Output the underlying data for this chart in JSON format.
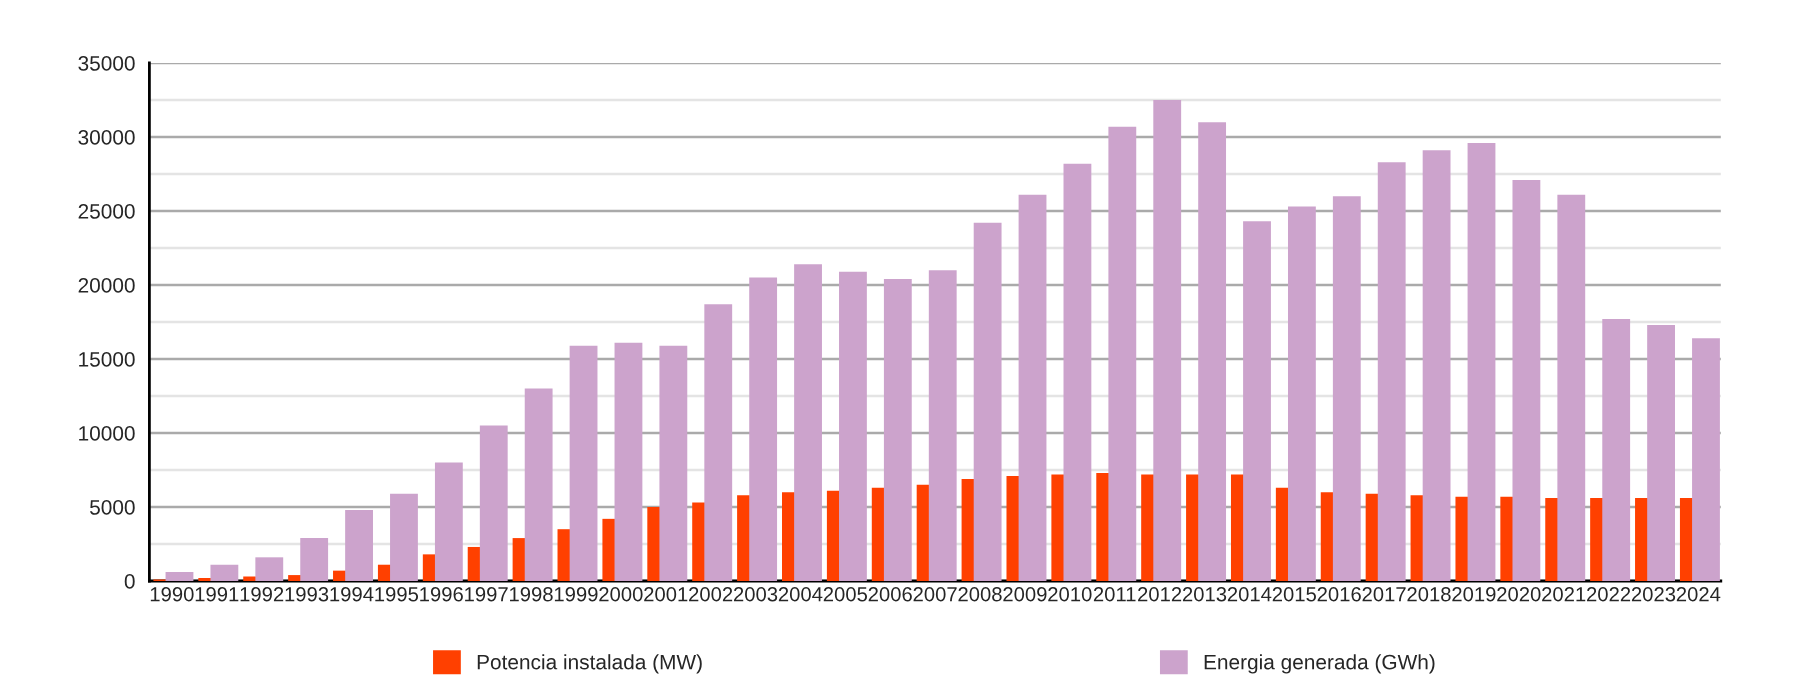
{
  "chart_data": {
    "type": "bar",
    "categories": [
      "1990",
      "1991",
      "1992",
      "1993",
      "1994",
      "1995",
      "1996",
      "1997",
      "1998",
      "1999",
      "2000",
      "2001",
      "2002",
      "2003",
      "2004",
      "2005",
      "2006",
      "2007",
      "2008",
      "2009",
      "2010",
      "2011",
      "2012",
      "2013",
      "2014",
      "2015",
      "2016",
      "2017",
      "2018",
      "2019",
      "2020",
      "2021",
      "2022",
      "2023",
      "2024"
    ],
    "series": [
      {
        "name": "Potencia instalada (MW)",
        "color": "#ff4000",
        "values": [
          100,
          200,
          300,
          400,
          700,
          1100,
          1800,
          2300,
          2900,
          3500,
          4200,
          5000,
          5300,
          5800,
          6000,
          6100,
          6300,
          6500,
          6900,
          7100,
          7200,
          7300,
          7200,
          7200,
          7200,
          6300,
          6000,
          5900,
          5800,
          5700,
          5700,
          5600,
          5600,
          5600,
          5600
        ]
      },
      {
        "name": "Energia generada (GWh)",
        "color": "#cca3cc",
        "values": [
          600,
          1100,
          1600,
          2900,
          4800,
          5900,
          8000,
          10500,
          13000,
          15900,
          16100,
          15900,
          18700,
          20500,
          21400,
          20900,
          20400,
          21000,
          24200,
          26100,
          28200,
          30700,
          32500,
          31000,
          24300,
          25300,
          26000,
          28300,
          29100,
          29600,
          27100,
          26100,
          17700,
          17300,
          16400
        ]
      }
    ],
    "ylim": [
      0,
      35000
    ],
    "yticks": [
      0,
      {
        "value": 2500,
        "label": null
      },
      5000,
      {
        "value": 7500,
        "label": null
      },
      10000,
      {
        "value": 12500,
        "label": null
      },
      15000,
      {
        "value": 17500,
        "label": null
      },
      20000,
      {
        "value": 22500,
        "label": null
      },
      25000,
      {
        "value": 27500,
        "label": null
      },
      30000,
      {
        "value": 32500,
        "label": null
      },
      35000
    ],
    "grid": "y",
    "legend": "bottom"
  }
}
